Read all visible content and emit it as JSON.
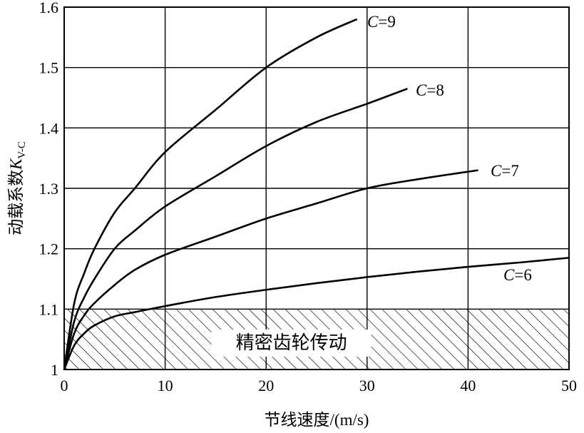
{
  "chart_data": {
    "type": "line",
    "title": "",
    "xlabel": "节线速度/(m/s)",
    "ylabel": "动载系数K",
    "ylabel_sub": "V-C",
    "xlim": [
      0,
      50
    ],
    "ylim": [
      1.0,
      1.6
    ],
    "x_ticks": [
      "0",
      "10",
      "20",
      "30",
      "40",
      "50"
    ],
    "y_ticks": [
      "1",
      "1.1",
      "1.2",
      "1.3",
      "1.4",
      "1.5",
      "1.6"
    ],
    "grid": true,
    "hatched_region": {
      "label": "精密齿轮传动",
      "y_range": [
        1.0,
        1.1
      ],
      "x_range": [
        0,
        50
      ]
    },
    "series": [
      {
        "name": "C=9",
        "label_prefix": "C",
        "label_suffix": "=9",
        "x": [
          0,
          1,
          2,
          3,
          5,
          7,
          10,
          15,
          20,
          25,
          29
        ],
        "y": [
          1.0,
          1.11,
          1.16,
          1.2,
          1.26,
          1.3,
          1.36,
          1.43,
          1.5,
          1.55,
          1.58
        ]
      },
      {
        "name": "C=8",
        "label_prefix": "C",
        "label_suffix": "=8",
        "x": [
          0,
          1,
          2,
          3,
          5,
          7,
          10,
          15,
          20,
          25,
          30,
          34
        ],
        "y": [
          1.0,
          1.08,
          1.12,
          1.15,
          1.2,
          1.23,
          1.27,
          1.32,
          1.37,
          1.41,
          1.44,
          1.465
        ]
      },
      {
        "name": "C=7",
        "label_prefix": "C",
        "label_suffix": "=7",
        "x": [
          0,
          1,
          2,
          3,
          5,
          7,
          10,
          15,
          20,
          25,
          30,
          35,
          41
        ],
        "y": [
          1.0,
          1.06,
          1.09,
          1.11,
          1.14,
          1.165,
          1.19,
          1.22,
          1.25,
          1.275,
          1.3,
          1.315,
          1.33
        ]
      },
      {
        "name": "C=6",
        "label_prefix": "C",
        "label_suffix": "=6",
        "x": [
          0,
          1,
          2,
          3,
          5,
          7,
          10,
          15,
          20,
          25,
          30,
          35,
          40,
          45,
          50
        ],
        "y": [
          1.0,
          1.04,
          1.06,
          1.073,
          1.088,
          1.095,
          1.105,
          1.12,
          1.132,
          1.143,
          1.153,
          1.162,
          1.17,
          1.177,
          1.185
        ]
      }
    ]
  }
}
